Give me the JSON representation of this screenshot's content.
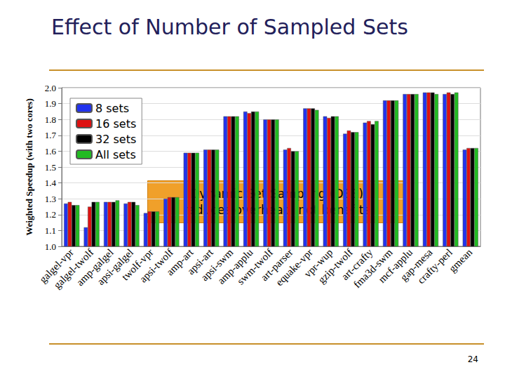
{
  "chart_data": {
    "type": "bar",
    "title": "Effect of Number of Sampled Sets",
    "y_label": "Weighted Speedup (with two cores)",
    "annotation": "Dynamic Set Sampling (DSS)\nreduces overhead, not benefits",
    "categories": [
      "galgel-vpr",
      "galgel-twolf",
      "amp-galgel",
      "apsi-galgel",
      "twolf-vpr",
      "apsi-twolf",
      "amp-art",
      "apsi-art",
      "apsi-swm",
      "amp-applu",
      "swm-twolf",
      "art-parser",
      "equake-vpr",
      "vpr-wup",
      "gzip-twolf",
      "art-crafty",
      "fma3d-swm",
      "mcf-applu",
      "gap-mesa",
      "crafty-perl",
      "gmean"
    ],
    "series": [
      {
        "name": "8 sets",
        "color": "#2233ee",
        "values": [
          1.27,
          1.12,
          1.28,
          1.27,
          1.21,
          1.3,
          1.59,
          1.61,
          1.82,
          1.85,
          1.8,
          1.61,
          1.87,
          1.82,
          1.71,
          1.78,
          1.92,
          1.96,
          1.97,
          1.96,
          1.61
        ]
      },
      {
        "name": "16 sets",
        "color": "#dd1111",
        "values": [
          1.28,
          1.25,
          1.28,
          1.28,
          1.22,
          1.31,
          1.59,
          1.61,
          1.82,
          1.84,
          1.8,
          1.62,
          1.87,
          1.81,
          1.73,
          1.79,
          1.92,
          1.96,
          1.97,
          1.97,
          1.62
        ]
      },
      {
        "name": "32 sets",
        "color": "#000000",
        "values": [
          1.26,
          1.28,
          1.28,
          1.28,
          1.22,
          1.31,
          1.59,
          1.61,
          1.82,
          1.85,
          1.8,
          1.6,
          1.87,
          1.82,
          1.72,
          1.77,
          1.92,
          1.96,
          1.97,
          1.96,
          1.62
        ]
      },
      {
        "name": "All sets",
        "color": "#22bb22",
        "values": [
          1.26,
          1.28,
          1.29,
          1.26,
          1.22,
          1.31,
          1.59,
          1.61,
          1.82,
          1.85,
          1.8,
          1.6,
          1.86,
          1.82,
          1.72,
          1.79,
          1.92,
          1.96,
          1.96,
          1.97,
          1.62
        ]
      }
    ],
    "ylim": [
      1.0,
      2.0
    ],
    "yticks": [
      {
        "value": 1.0,
        "label": "1.0"
      },
      {
        "value": 1.1,
        "label": "1.1"
      },
      {
        "value": 1.2,
        "label": "1.2"
      },
      {
        "value": 1.3,
        "label": "1.3"
      },
      {
        "value": 1.4,
        "label": "1.4"
      },
      {
        "value": 1.5,
        "label": "1.5"
      },
      {
        "value": 1.6,
        "label": "1.6"
      },
      {
        "value": 1.7,
        "label": "1.7"
      },
      {
        "value": 1.8,
        "label": "1.8"
      },
      {
        "value": 1.9,
        "label": "1.9"
      },
      {
        "value": 2.0,
        "label": "2.0"
      }
    ],
    "grid": true,
    "legend": "upper left"
  },
  "footer": {
    "page_number": "24"
  }
}
